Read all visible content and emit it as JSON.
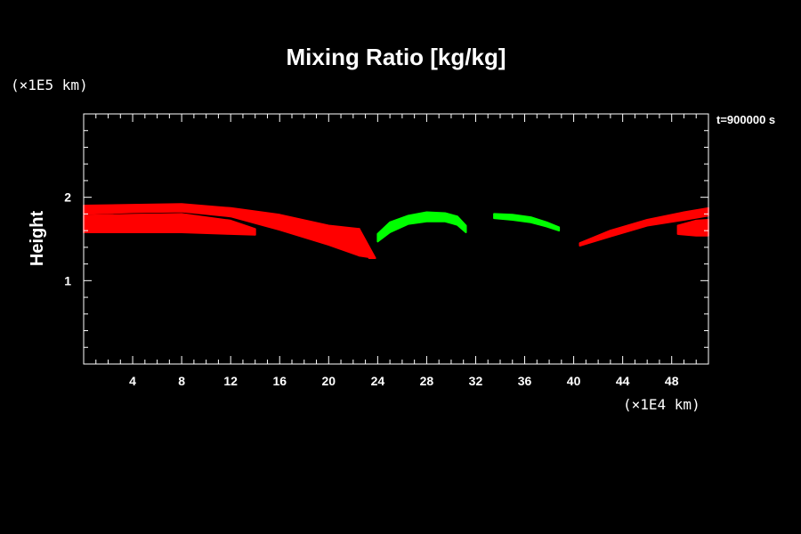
{
  "chart_data": {
    "type": "area",
    "title": "Mixing Ratio [kg/kg]",
    "xlabel": "",
    "ylabel": "Height",
    "x_unit": "(×1E4 km)",
    "y_unit": "(×1E5 km)",
    "time_label": "t=900000 s",
    "xlim": [
      0,
      51
    ],
    "ylim": [
      0,
      3
    ],
    "x_ticks": [
      4,
      8,
      12,
      16,
      20,
      24,
      28,
      32,
      36,
      40,
      44,
      48
    ],
    "y_ticks": [
      1,
      2
    ],
    "colors": {
      "background": "#000000",
      "axes": "#ffffff",
      "red_tracer": "#ff0000",
      "green_tracer": "#00ff00"
    },
    "series": [
      {
        "color": "#ff0000",
        "x": [
          0,
          4,
          8,
          12,
          16,
          20,
          22.5
        ],
        "top": [
          1.9,
          1.91,
          1.92,
          1.87,
          1.79,
          1.66,
          1.62
        ],
        "bottom": [
          1.8,
          1.82,
          1.83,
          1.77,
          1.61,
          1.43,
          1.3
        ]
      },
      {
        "color": "#ff0000",
        "x": [
          0,
          4,
          8,
          12,
          14
        ],
        "top": [
          1.78,
          1.79,
          1.8,
          1.72,
          1.62
        ],
        "bottom": [
          1.58,
          1.58,
          1.58,
          1.56,
          1.55
        ]
      },
      {
        "color": "#ff0000",
        "x": [
          22.5,
          23.8,
          23.3
        ],
        "top": [
          1.62,
          1.27,
          1.27
        ],
        "bottom": [
          1.3,
          1.27,
          1.27
        ]
      },
      {
        "color": "#ff0000",
        "x": [
          40.5,
          43,
          46,
          49,
          51
        ],
        "top": [
          1.45,
          1.6,
          1.73,
          1.82,
          1.87
        ],
        "bottom": [
          1.42,
          1.53,
          1.66,
          1.73,
          1.78
        ]
      },
      {
        "color": "#ff0000",
        "x": [
          48.5,
          50,
          51
        ],
        "top": [
          1.66,
          1.72,
          1.73
        ],
        "bottom": [
          1.56,
          1.54,
          1.54
        ]
      },
      {
        "color": "#00ff00",
        "x": [
          24,
          25,
          26.5,
          28,
          29.5,
          30.5,
          31.2
        ],
        "top": [
          1.56,
          1.7,
          1.78,
          1.82,
          1.81,
          1.77,
          1.66
        ],
        "bottom": [
          1.47,
          1.58,
          1.68,
          1.71,
          1.71,
          1.67,
          1.58
        ]
      },
      {
        "color": "#00ff00",
        "x": [
          33.5,
          35,
          36.5,
          37.8,
          38.8
        ],
        "top": [
          1.8,
          1.79,
          1.76,
          1.7,
          1.64
        ],
        "bottom": [
          1.75,
          1.73,
          1.7,
          1.65,
          1.6
        ]
      }
    ]
  }
}
